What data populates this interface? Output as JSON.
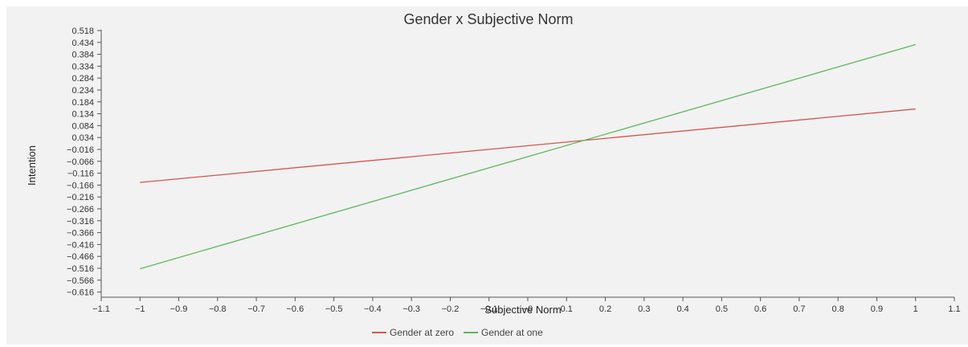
{
  "chart_data": {
    "type": "line",
    "title": "Gender x Subjective Norm",
    "xlabel": "Subjective Norm",
    "ylabel": "Intention",
    "xlim": [
      -1.1,
      1.1
    ],
    "ylim": [
      -0.616,
      0.518
    ],
    "x_ticks": [
      "−1.1",
      "−1",
      "−0.9",
      "−0.8",
      "−0.7",
      "−0.6",
      "−0.5",
      "−0.4",
      "−0.3",
      "−0.2",
      "−0.1",
      "−0",
      "0.1",
      "0.2",
      "0.3",
      "0.4",
      "0.5",
      "0.6",
      "0.7",
      "0.8",
      "0.9",
      "1",
      "1.1"
    ],
    "y_ticks": [
      "0.518",
      "0.434",
      "0.384",
      "0.334",
      "0.284",
      "0.234",
      "0.184",
      "0.134",
      "0.084",
      "0.034",
      "−0.016",
      "−0.066",
      "−0.116",
      "−0.166",
      "−0.216",
      "−0.266",
      "−0.316",
      "−0.366",
      "−0.416",
      "−0.466",
      "−0.516",
      "−0.566",
      "−0.616"
    ],
    "grid": false,
    "legend_position": "bottom",
    "series": [
      {
        "name": "Gender at zero",
        "color": "#d9534f",
        "x": [
          -1,
          1
        ],
        "y": [
          -0.155,
          0.154
        ]
      },
      {
        "name": "Gender at one",
        "color": "#5cb85c",
        "x": [
          -1,
          1
        ],
        "y": [
          -0.518,
          0.425
        ]
      }
    ]
  }
}
